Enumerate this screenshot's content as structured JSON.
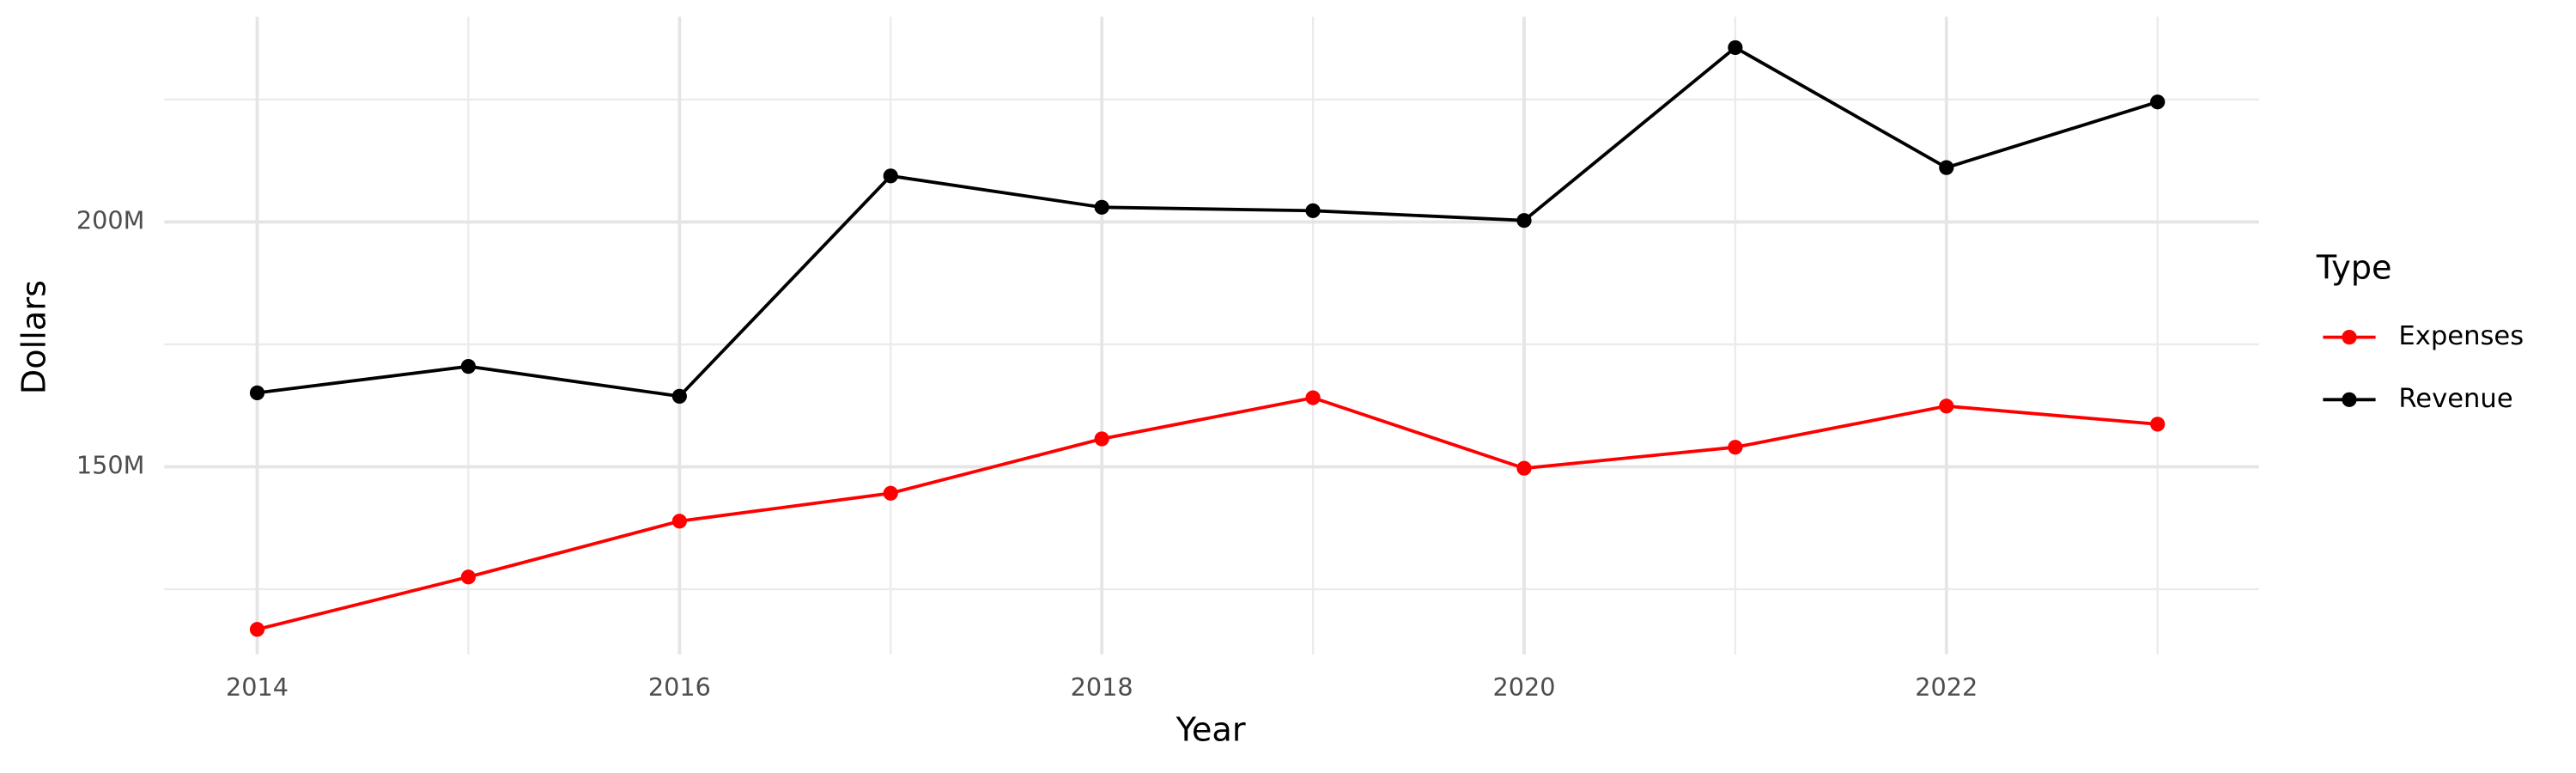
{
  "chart_data": {
    "type": "line",
    "x_label": "Year",
    "y_label": "Dollars",
    "x": [
      2014,
      2015,
      2016,
      2017,
      2018,
      2019,
      2020,
      2021,
      2022,
      2023
    ],
    "series": [
      {
        "name": "Expenses",
        "color": "#ff0000",
        "values": [
          116.8,
          127.5,
          138.9,
          144.6,
          155.7,
          164.1,
          149.7,
          154.0,
          162.4,
          158.7
        ]
      },
      {
        "name": "Revenue",
        "color": "#000000",
        "values": [
          165.1,
          170.5,
          164.4,
          209.4,
          203.0,
          202.3,
          200.3,
          235.6,
          211.1,
          224.5
        ]
      }
    ],
    "xlim": [
      2013.56,
      2023.48
    ],
    "ylim": [
      111.7,
      241.9
    ],
    "xticks": [
      2014,
      2016,
      2018,
      2020,
      2022
    ],
    "x_minor_ticks": [
      2015,
      2017,
      2019,
      2021,
      2023
    ],
    "yticks": [
      {
        "value": 150,
        "label": "150M"
      },
      {
        "value": 200,
        "label": "200M"
      }
    ],
    "y_minor_ticks": [
      125,
      175,
      225
    ],
    "grid": true,
    "legend_title": "Type",
    "legend_position": "right"
  }
}
